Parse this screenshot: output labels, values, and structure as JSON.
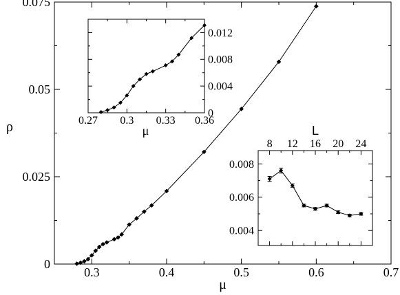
{
  "chart_data": [
    {
      "id": "main",
      "type": "line",
      "xlabel": "μ",
      "ylabel": "ρ",
      "xlim": [
        0.25,
        0.7
      ],
      "ylim": [
        0,
        0.075
      ],
      "xticks": [
        0.3,
        0.4,
        0.5,
        0.6,
        0.7
      ],
      "xtick_labels": [
        "0.3",
        "0.4",
        "0.5",
        "0.6",
        "0.7"
      ],
      "yticks": [
        0,
        0.025,
        0.05,
        0.075
      ],
      "ytick_labels": [
        "0",
        "0.025",
        "0.05",
        "0.075"
      ],
      "series": [
        {
          "x": [
            0.28,
            0.285,
            0.29,
            0.295,
            0.3,
            0.305,
            0.31,
            0.315,
            0.32,
            0.33,
            0.335,
            0.34,
            0.35,
            0.36,
            0.37,
            0.38,
            0.4,
            0.45,
            0.5,
            0.55,
            0.6
          ],
          "y": [
            0.0001,
            0.0004,
            0.0008,
            0.0014,
            0.0025,
            0.0038,
            0.0049,
            0.0057,
            0.0062,
            0.0071,
            0.0076,
            0.0085,
            0.0113,
            0.0131,
            0.015,
            0.0168,
            0.0209,
            0.0321,
            0.0444,
            0.0579,
            0.0738
          ]
        }
      ]
    },
    {
      "id": "inset-left",
      "type": "line",
      "xlabel": "μ",
      "ylabel": "",
      "xlim": [
        0.27,
        0.36
      ],
      "ylim": [
        0,
        0.014
      ],
      "xticks": [
        0.27,
        0.3,
        0.33,
        0.36
      ],
      "xtick_labels": [
        "0.27",
        "0.3",
        "0.33",
        "0.36"
      ],
      "yticks": [
        0,
        0.004,
        0.008,
        0.012
      ],
      "ytick_labels": [
        "0",
        "0.004",
        "0.008",
        "0.012"
      ],
      "yaxis_side": "right",
      "series": [
        {
          "x": [
            0.28,
            0.285,
            0.29,
            0.295,
            0.3,
            0.305,
            0.31,
            0.315,
            0.32,
            0.33,
            0.335,
            0.34,
            0.35,
            0.36
          ],
          "y": [
            0.0001,
            0.0004,
            0.0008,
            0.0015,
            0.0026,
            0.004,
            0.005,
            0.0058,
            0.0062,
            0.0071,
            0.0077,
            0.0087,
            0.0112,
            0.0131
          ]
        }
      ]
    },
    {
      "id": "inset-right",
      "type": "line",
      "xlabel": "L",
      "ylabel": "",
      "xlim": [
        6,
        26
      ],
      "ylim": [
        0.0031,
        0.0088
      ],
      "xticks": [
        8,
        12,
        16,
        20,
        24
      ],
      "xtick_labels": [
        "8",
        "12",
        "16",
        "20",
        "24"
      ],
      "xaxis_side": "top",
      "yticks": [
        0.004,
        0.006,
        0.008
      ],
      "ytick_labels": [
        "0.004",
        "0.006",
        "0.008"
      ],
      "series": [
        {
          "x": [
            8,
            10,
            12,
            14,
            16,
            18,
            20,
            22,
            24
          ],
          "y": [
            0.0071,
            0.0076,
            0.0067,
            0.0055,
            0.0053,
            0.0055,
            0.0051,
            0.0049,
            0.005
          ],
          "err": [
            0.00015,
            0.00015,
            0.0001,
            8e-05,
            8e-05,
            8e-05,
            8e-05,
            8e-05,
            8e-05
          ]
        }
      ]
    }
  ]
}
